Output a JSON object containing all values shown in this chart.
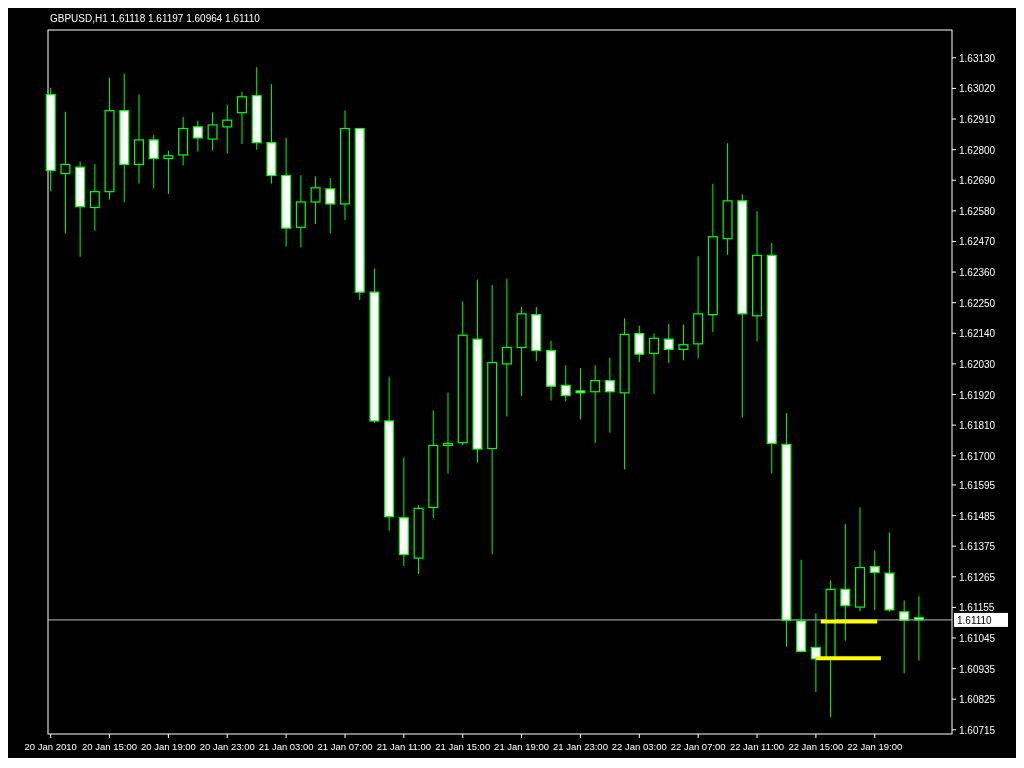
{
  "chart_data": {
    "type": "candlestick",
    "title": "GBPUSD,H1 1.61118 1.61197 1.60964 1.61110",
    "color": "#00ff00",
    "x": [
      "2010-01-20T11:00",
      "2010-01-20T12:00",
      "2010-01-20T13:00",
      "2010-01-20T14:00",
      "2010-01-20T15:00",
      "2010-01-20T16:00",
      "2010-01-20T17:00",
      "2010-01-20T18:00",
      "2010-01-20T19:00",
      "2010-01-20T20:00",
      "2010-01-20T21:00",
      "2010-01-20T22:00",
      "2010-01-20T23:00",
      "2010-01-21T00:00",
      "2010-01-21T01:00",
      "2010-01-21T02:00",
      "2010-01-21T03:00",
      "2010-01-21T04:00",
      "2010-01-21T05:00",
      "2010-01-21T06:00",
      "2010-01-21T07:00",
      "2010-01-21T08:00",
      "2010-01-21T09:00",
      "2010-01-21T10:00",
      "2010-01-21T11:00",
      "2010-01-21T12:00",
      "2010-01-21T13:00",
      "2010-01-21T14:00",
      "2010-01-21T15:00",
      "2010-01-21T16:00",
      "2010-01-21T17:00",
      "2010-01-21T18:00",
      "2010-01-21T19:00",
      "2010-01-21T20:00",
      "2010-01-21T21:00",
      "2010-01-21T22:00",
      "2010-01-21T23:00",
      "2010-01-22T00:00",
      "2010-01-22T01:00",
      "2010-01-22T02:00",
      "2010-01-22T03:00",
      "2010-01-22T04:00",
      "2010-01-22T05:00",
      "2010-01-22T06:00",
      "2010-01-22T07:00",
      "2010-01-22T08:00",
      "2010-01-22T09:00",
      "2010-01-22T10:00",
      "2010-01-22T11:00",
      "2010-01-22T12:00",
      "2010-01-22T13:00",
      "2010-01-22T14:00",
      "2010-01-22T15:00",
      "2010-01-22T16:00",
      "2010-01-22T17:00",
      "2010-01-22T18:00",
      "2010-01-22T19:00",
      "2010-01-22T20:00",
      "2010-01-22T21:00",
      "2010-01-22T22:00"
    ],
    "ohlc": [
      [
        1.62998,
        1.63022,
        1.6265,
        1.62725
      ],
      [
        1.62714,
        1.62936,
        1.62499,
        1.62747
      ],
      [
        1.62737,
        1.62757,
        1.62415,
        1.62595
      ],
      [
        1.62592,
        1.62748,
        1.62509,
        1.62649
      ],
      [
        1.62649,
        1.63059,
        1.62621,
        1.6294
      ],
      [
        1.6294,
        1.63073,
        1.62611,
        1.62747
      ],
      [
        1.62747,
        1.62998,
        1.62678,
        1.62835
      ],
      [
        1.62835,
        1.62853,
        1.62661,
        1.62768
      ],
      [
        1.62768,
        1.62796,
        1.62641,
        1.62778
      ],
      [
        1.62781,
        1.62917,
        1.62743,
        1.62876
      ],
      [
        1.62882,
        1.62904,
        1.62793,
        1.62842
      ],
      [
        1.62838,
        1.62934,
        1.62797,
        1.62889
      ],
      [
        1.62882,
        1.62961,
        1.62786,
        1.62906
      ],
      [
        1.62933,
        1.63008,
        1.6282,
        1.6299
      ],
      [
        1.62994,
        1.63096,
        1.628,
        1.62825
      ],
      [
        1.62825,
        1.63035,
        1.62678,
        1.62707
      ],
      [
        1.62707,
        1.62843,
        1.62452,
        1.62518
      ],
      [
        1.62521,
        1.62708,
        1.62449,
        1.62612
      ],
      [
        1.62612,
        1.62704,
        1.62533,
        1.62663
      ],
      [
        1.62659,
        1.62698,
        1.62499,
        1.62605
      ],
      [
        1.62605,
        1.62941,
        1.62547,
        1.62876
      ],
      [
        1.62876,
        1.62876,
        1.6226,
        1.62288
      ],
      [
        1.62288,
        1.62373,
        1.61818,
        1.61825
      ],
      [
        1.61825,
        1.61982,
        1.6143,
        1.61481
      ],
      [
        1.61477,
        1.61694,
        1.61304,
        1.61345
      ],
      [
        1.61332,
        1.61522,
        1.61275,
        1.61511
      ],
      [
        1.61514,
        1.61863,
        1.61476,
        1.61737
      ],
      [
        1.61737,
        1.61927,
        1.61635,
        1.61744
      ],
      [
        1.61747,
        1.62255,
        1.61737,
        1.62133
      ],
      [
        1.62119,
        1.62333,
        1.61675,
        1.61724
      ],
      [
        1.61726,
        1.62313,
        1.61347,
        1.62035
      ],
      [
        1.6203,
        1.62336,
        1.61841,
        1.62089
      ],
      [
        1.62089,
        1.62235,
        1.61915,
        1.6221
      ],
      [
        1.62207,
        1.62235,
        1.6204,
        1.62078
      ],
      [
        1.62078,
        1.62113,
        1.61898,
        1.6195
      ],
      [
        1.61953,
        1.62025,
        1.61895,
        1.61916
      ],
      [
        1.61933,
        1.62015,
        1.6183,
        1.61926
      ],
      [
        1.6193,
        1.62025,
        1.61746,
        1.6197
      ],
      [
        1.6197,
        1.62052,
        1.61783,
        1.6193
      ],
      [
        1.61926,
        1.62194,
        1.61651,
        1.62136
      ],
      [
        1.62139,
        1.62167,
        1.62037,
        1.62065
      ],
      [
        1.62068,
        1.6214,
        1.61922,
        1.62122
      ],
      [
        1.62119,
        1.62174,
        1.62033,
        1.62082
      ],
      [
        1.62082,
        1.62171,
        1.62043,
        1.62099
      ],
      [
        1.62102,
        1.62417,
        1.6205,
        1.6221
      ],
      [
        1.62207,
        1.62677,
        1.62145,
        1.62487
      ],
      [
        1.6248,
        1.62823,
        1.62422,
        1.62616
      ],
      [
        1.62616,
        1.6264,
        1.61837,
        1.6221
      ],
      [
        1.62203,
        1.62579,
        1.62111,
        1.6242
      ],
      [
        1.6242,
        1.62465,
        1.61636,
        1.61744
      ],
      [
        1.61741,
        1.61853,
        1.61014,
        1.61109
      ],
      [
        1.61106,
        1.61326,
        1.60993,
        1.60997
      ],
      [
        1.61011,
        1.61134,
        1.60851,
        1.6097
      ],
      [
        1.60974,
        1.61252,
        1.6076,
        1.6122
      ],
      [
        1.6122,
        1.61455,
        1.61035,
        1.61161
      ],
      [
        1.61156,
        1.61515,
        1.61141,
        1.61298
      ],
      [
        1.61302,
        1.6136,
        1.61145,
        1.61281
      ],
      [
        1.61278,
        1.61424,
        1.6114,
        1.61146
      ],
      [
        1.61139,
        1.6118,
        1.60918,
        1.61109
      ],
      [
        1.61118,
        1.61197,
        1.60964,
        1.6111
      ]
    ],
    "series": [
      {
        "type": "line",
        "color": "#ffff00",
        "x": [
          "2010-01-22T15:20",
          "2010-01-22T19:10"
        ],
        "values": [
          1.61104,
          1.61104
        ]
      },
      {
        "type": "line",
        "color": "#ffff00",
        "x": [
          "2010-01-22T15:00",
          "2010-01-22T19:25"
        ],
        "values": [
          1.60972,
          1.60972
        ]
      }
    ],
    "ref_lines": [
      {
        "axis": "y",
        "value": 1.6111,
        "label": "1.61110",
        "color": "#c0c0c0"
      }
    ],
    "xlim": [
      "2010-01-20T10:49",
      "2010-01-23T00:15"
    ],
    "ylim": [
      1.607,
      1.6323
    ],
    "xticks": [
      {
        "value": "2010-01-20T11:00",
        "label": "20 Jan 2010"
      },
      {
        "value": "2010-01-20T15:00",
        "label": "20 Jan 15:00"
      },
      {
        "value": "2010-01-20T19:00",
        "label": "20 Jan 19:00"
      },
      {
        "value": "2010-01-20T23:00",
        "label": "20 Jan 23:00"
      },
      {
        "value": "2010-01-21T03:00",
        "label": "21 Jan 03:00"
      },
      {
        "value": "2010-01-21T07:00",
        "label": "21 Jan 07:00"
      },
      {
        "value": "2010-01-21T11:00",
        "label": "21 Jan 11:00"
      },
      {
        "value": "2010-01-21T15:00",
        "label": "21 Jan 15:00"
      },
      {
        "value": "2010-01-21T19:00",
        "label": "21 Jan 19:00"
      },
      {
        "value": "2010-01-21T23:00",
        "label": "21 Jan 23:00"
      },
      {
        "value": "2010-01-22T03:00",
        "label": "22 Jan 03:00"
      },
      {
        "value": "2010-01-22T07:00",
        "label": "22 Jan 07:00"
      },
      {
        "value": "2010-01-22T11:00",
        "label": "22 Jan 11:00"
      },
      {
        "value": "2010-01-22T15:00",
        "label": "22 Jan 15:00"
      },
      {
        "value": "2010-01-22T19:00",
        "label": "22 Jan 19:00"
      }
    ],
    "yticks": [
      {
        "value": 1.6313,
        "label": "1.63130"
      },
      {
        "value": 1.6302,
        "label": "1.63020"
      },
      {
        "value": 1.6291,
        "label": "1.62910"
      },
      {
        "value": 1.628,
        "label": "1.62800"
      },
      {
        "value": 1.6269,
        "label": "1.62690"
      },
      {
        "value": 1.6258,
        "label": "1.62580"
      },
      {
        "value": 1.6247,
        "label": "1.62470"
      },
      {
        "value": 1.6236,
        "label": "1.62360"
      },
      {
        "value": 1.6225,
        "label": "1.62250"
      },
      {
        "value": 1.6214,
        "label": "1.62140"
      },
      {
        "value": 1.6203,
        "label": "1.62030"
      },
      {
        "value": 1.6192,
        "label": "1.61920"
      },
      {
        "value": 1.6181,
        "label": "1.61810"
      },
      {
        "value": 1.617,
        "label": "1.61700"
      },
      1.61595,
      1.61485,
      1.61375,
      1.61265,
      1.61155,
      1.61045,
      1.60935,
      1.60825,
      1.60715
    ]
  }
}
